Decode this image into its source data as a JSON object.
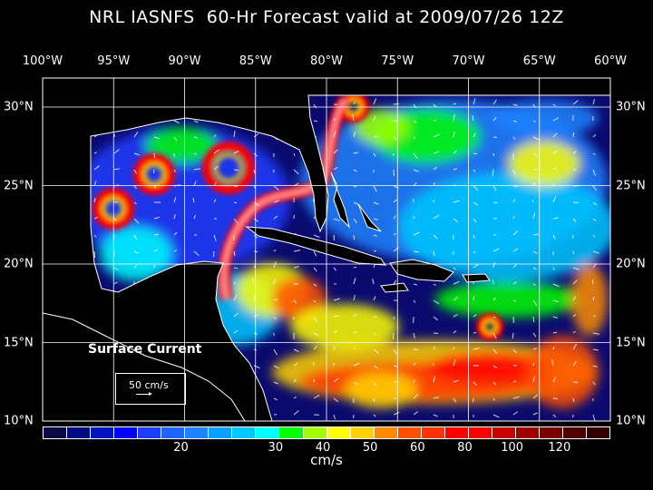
{
  "title": "NRL IASNFS  60-Hr Forecast valid at 2009/07/26 12Z",
  "lon_labels": [
    "100°W",
    "95°W",
    "90°W",
    "85°W",
    "80°W",
    "75°W",
    "70°W",
    "65°W",
    "60°W"
  ],
  "lat_labels": [
    "30°N",
    "25°N",
    "20°N",
    "15°N",
    "10°N"
  ],
  "legend": {
    "title": "Surface Current",
    "scale_label": "50 cm/s"
  },
  "colorbar": {
    "unit": "cm/s",
    "colors": [
      "#0a0a46",
      "#000a82",
      "#0014be",
      "#0000ff",
      "#1e3cff",
      "#1e64ff",
      "#1e82ff",
      "#0aa0ff",
      "#00c8ff",
      "#00ffff",
      "#00ff00",
      "#a0ff00",
      "#ffff00",
      "#ffd200",
      "#ff8c00",
      "#ff5000",
      "#ff3200",
      "#ff0000",
      "#ff0000",
      "#c80000",
      "#a00000",
      "#780000",
      "#500000",
      "#320000"
    ],
    "ticks": [
      {
        "label": "20",
        "box": 6
      },
      {
        "label": "30",
        "box": 10
      },
      {
        "label": "40",
        "box": 12
      },
      {
        "label": "50",
        "box": 14
      },
      {
        "label": "60",
        "box": 16
      },
      {
        "label": "80",
        "box": 18
      },
      {
        "label": "100",
        "box": 20
      },
      {
        "label": "120",
        "box": 22
      }
    ]
  }
}
